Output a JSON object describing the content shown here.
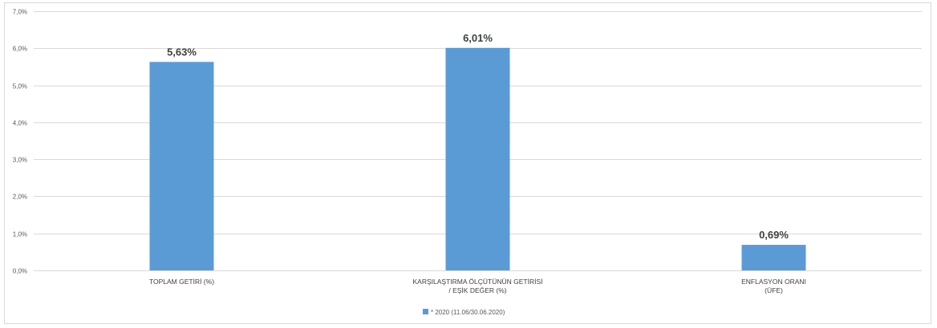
{
  "chart_data": {
    "type": "bar",
    "categories": [
      [
        "TOPLAM GETİRİ (%)"
      ],
      [
        "KARŞILAŞTIRMA ÖLÇÜTÜNÜN GETİRİSİ",
        "/ EŞİK DEĞER (%)"
      ],
      [
        "ENFLASYON ORANI",
        "(ÜFE)"
      ]
    ],
    "series": [
      {
        "name": "* 2020 (11.06/30.06.2020)",
        "values": [
          5.63,
          6.01,
          0.69
        ],
        "data_labels": [
          "5,63%",
          "6,01%",
          "0,69%"
        ],
        "color": "#5B9BD5"
      }
    ],
    "ylim": [
      0,
      7
    ],
    "y_ticks": [
      0,
      1,
      2,
      3,
      4,
      5,
      6,
      7
    ],
    "y_tick_labels": [
      "0,0%",
      "1,0%",
      "2,0%",
      "3,0%",
      "4,0%",
      "5,0%",
      "6,0%",
      "7,0%"
    ],
    "grid": true,
    "legend_position": "bottom-center",
    "gridline_color": "#d9d9d9",
    "axis_label_color": "#595959"
  }
}
